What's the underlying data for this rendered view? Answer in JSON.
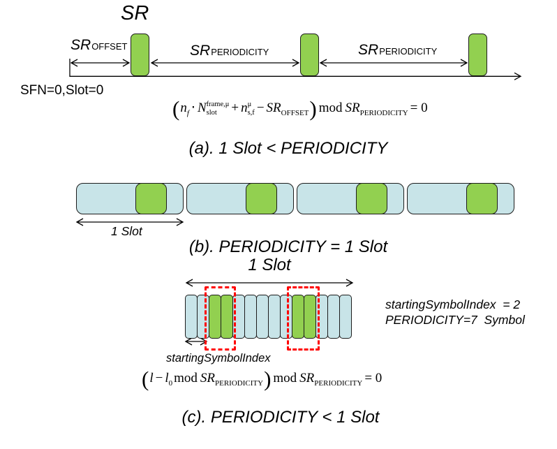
{
  "colors": {
    "green": "#92D050",
    "blue": "#C8E4E8",
    "red": "#FF0000",
    "line": "#000000"
  },
  "section_a": {
    "sr_title": "SR",
    "offset_label": {
      "base": "SR",
      "sub": "OFFSET"
    },
    "periodicity_label_1": {
      "base": "SR",
      "sub": "PERIODICITY"
    },
    "periodicity_label_2": {
      "base": "SR",
      "sub": "PERIODICITY"
    },
    "origin_label": "SFN=0,Slot=0",
    "formula": {
      "open_paren": "(",
      "n1": "n",
      "n1_sub": "f",
      "cdot": "⋅",
      "N": "N",
      "N_sup": "frame,μ",
      "N_sub": "slot",
      "plus": "+",
      "n2": "n",
      "n2_sup": "μ",
      "n2_sub": "s,f",
      "minus": "−",
      "sr1": "SR",
      "sr1_sub": "OFFSET",
      "close_paren": ")",
      "mod": "mod",
      "sr2": "SR",
      "sr2_sub": "PERIODICITY",
      "equals": "= 0"
    },
    "caption": "(a). 1 Slot < PERIODICITY"
  },
  "section_b": {
    "slots": [
      "slot",
      "slot",
      "slot",
      "slot"
    ],
    "slot_width_label": "1 Slot",
    "caption": "(b). PERIODICITY = 1 Slot"
  },
  "section_c": {
    "slot_width_label": "1 Slot",
    "symbols": [
      "sym-blue",
      "sym-blue",
      "sym-green",
      "sym-green",
      "sym-blue",
      "sym-blue",
      "sym-blue",
      "sym-blue",
      "sym-blue",
      "sym-green",
      "sym-green",
      "sym-blue",
      "sym-blue",
      "sym-blue"
    ],
    "starting_symbol_label": "startingSymbolIndex",
    "params_line1": "startingSymbolIndex  = 2",
    "params_line2": "PERIODICITY=7  Symbol",
    "formula": {
      "open_paren": "(",
      "l": "l",
      "minus": "−",
      "l0": "l",
      "l0_sub": "0",
      "mod1": "mod",
      "sr1": "SR",
      "sr1_sub": "PERIODICITY",
      "close_paren": ")",
      "mod2": "mod",
      "sr2": "SR",
      "sr2_sub": "PERIODICITY",
      "equals": "= 0"
    },
    "caption": "(c). PERIODICITY < 1 Slot"
  }
}
